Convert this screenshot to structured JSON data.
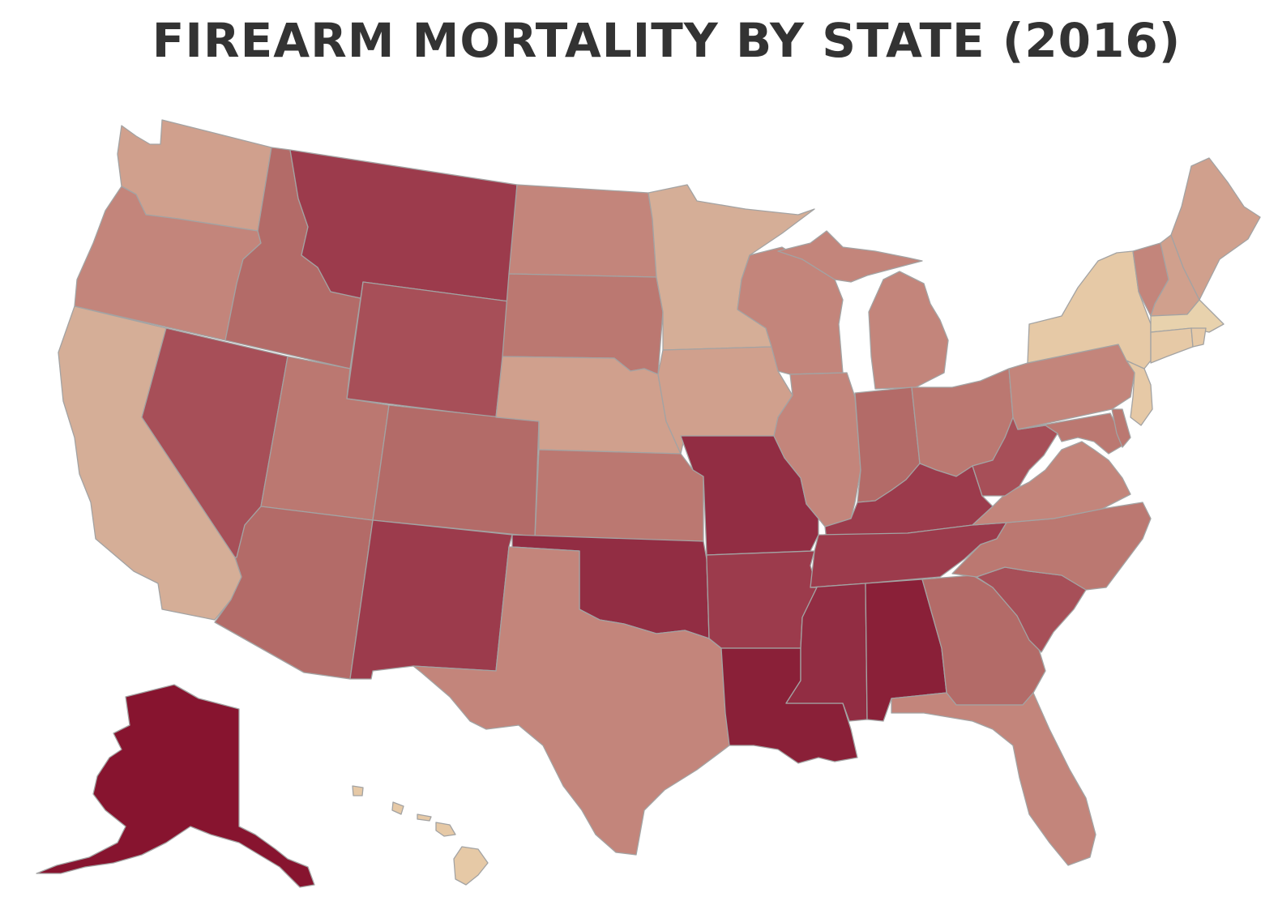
{
  "title": "FIREARM MORTALITY BY STATE (2016)",
  "palette": {
    "level1": "#e8d2ad",
    "level2": "#e6c9a6",
    "level3": "#d5ae97",
    "level4": "#d0a08d",
    "level5": "#c3857b",
    "level6": "#bb7871",
    "level7": "#b36b68",
    "level8": "#a74f58",
    "level9": "#9c3b4c",
    "level10": "#922d43",
    "level11": "#8a2038",
    "level12": "#87142f",
    "border": "#a3a3a3"
  },
  "states": [
    {
      "id": "WA",
      "level": 4
    },
    {
      "id": "OR",
      "level": 5
    },
    {
      "id": "CA",
      "level": 3
    },
    {
      "id": "NV",
      "level": 8
    },
    {
      "id": "ID",
      "level": 7
    },
    {
      "id": "MT",
      "level": 9
    },
    {
      "id": "WY",
      "level": 8
    },
    {
      "id": "UT",
      "level": 6
    },
    {
      "id": "AZ",
      "level": 7
    },
    {
      "id": "CO",
      "level": 7
    },
    {
      "id": "NM",
      "level": 9
    },
    {
      "id": "ND",
      "level": 5
    },
    {
      "id": "SD",
      "level": 6
    },
    {
      "id": "NE",
      "level": 4
    },
    {
      "id": "KS",
      "level": 6
    },
    {
      "id": "OK",
      "level": 10
    },
    {
      "id": "TX",
      "level": 5
    },
    {
      "id": "MN",
      "level": 3
    },
    {
      "id": "IA",
      "level": 4
    },
    {
      "id": "MO",
      "level": 10
    },
    {
      "id": "AR",
      "level": 9
    },
    {
      "id": "LA",
      "level": 11
    },
    {
      "id": "WI",
      "level": 5
    },
    {
      "id": "IL",
      "level": 5
    },
    {
      "id": "MI",
      "level": 5
    },
    {
      "id": "IN",
      "level": 7
    },
    {
      "id": "OH",
      "level": 6
    },
    {
      "id": "KY",
      "level": 9
    },
    {
      "id": "TN",
      "level": 9
    },
    {
      "id": "MS",
      "level": 10
    },
    {
      "id": "AL",
      "level": 11
    },
    {
      "id": "GA",
      "level": 7
    },
    {
      "id": "FL",
      "level": 5
    },
    {
      "id": "SC",
      "level": 8
    },
    {
      "id": "NC",
      "level": 6
    },
    {
      "id": "VA",
      "level": 5
    },
    {
      "id": "WV",
      "level": 8
    },
    {
      "id": "PA",
      "level": 5
    },
    {
      "id": "NY",
      "level": 2
    },
    {
      "id": "VT",
      "level": 5
    },
    {
      "id": "NH",
      "level": 4
    },
    {
      "id": "ME",
      "level": 4
    },
    {
      "id": "MA",
      "level": 1
    },
    {
      "id": "CT",
      "level": 2
    },
    {
      "id": "RI",
      "level": 2
    },
    {
      "id": "NJ",
      "level": 2
    },
    {
      "id": "DE",
      "level": 6
    },
    {
      "id": "MD",
      "level": 6
    },
    {
      "id": "AK",
      "level": 12
    },
    {
      "id": "HI",
      "level": 2
    }
  ]
}
